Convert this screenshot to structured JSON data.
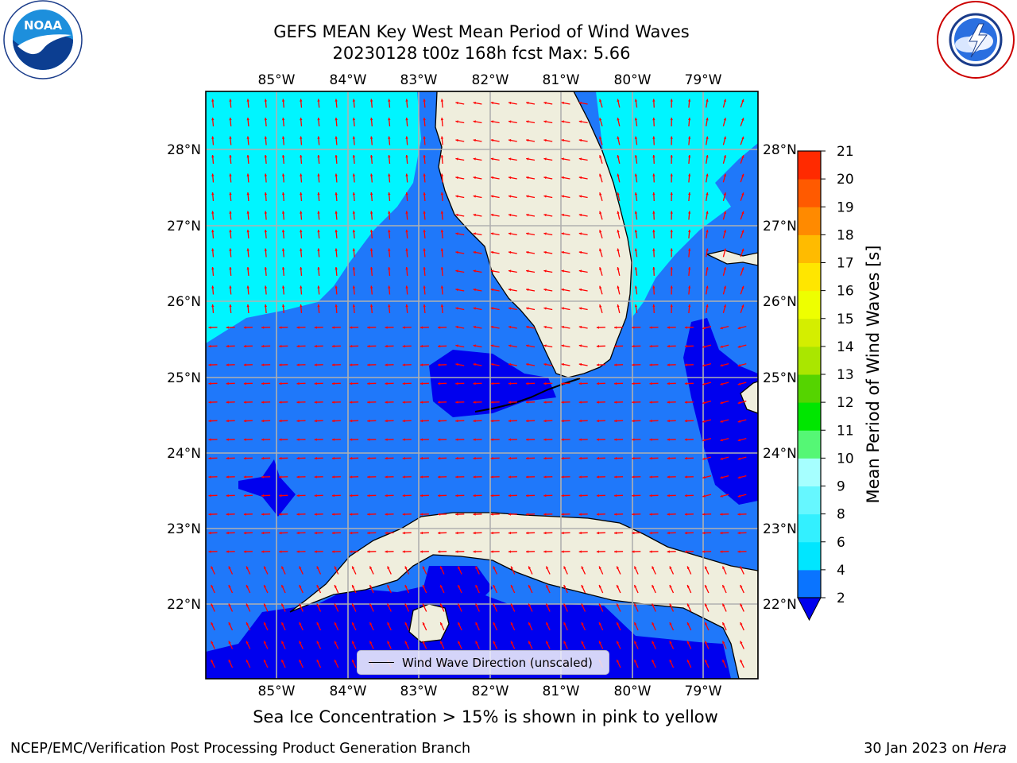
{
  "title_line1": "GEFS MEAN Key West Mean Period of Wind Waves",
  "title_line2": "20230128 t00z 168h fcst   Max: 5.66",
  "lon_labels": [
    "85°W",
    "84°W",
    "83°W",
    "82°W",
    "81°W",
    "80°W",
    "79°W"
  ],
  "lat_labels": [
    "28°N",
    "27°N",
    "26°N",
    "25°N",
    "24°N",
    "23°N",
    "22°N"
  ],
  "colorbar": {
    "label": "Mean Period of Wind Waves [s]",
    "ticks": [
      "2",
      "4",
      "6",
      "8",
      "9",
      "10",
      "11",
      "12",
      "13",
      "14",
      "15",
      "16",
      "17",
      "18",
      "19",
      "20",
      "21"
    ],
    "colors": [
      "#0a74ff",
      "#00e6ff",
      "#33f0ff",
      "#66f7ff",
      "#a6ffff",
      "#55f775",
      "#00e600",
      "#55d400",
      "#aae600",
      "#d4ee00",
      "#eeff00",
      "#ffe600",
      "#ffbb00",
      "#ff8a00",
      "#ff5a00",
      "#ff2a00"
    ],
    "extend_color": "#0000ee"
  },
  "legend_label": "Wind Wave Direction (unscaled)",
  "ice_note": "Sea Ice Concentration > 15% is shown in pink to yellow",
  "footer_left": "NCEP/EMC/Verification Post Processing Product Generation Branch",
  "footer_right_prefix": "30 Jan 2023 on ",
  "footer_right_host": "Hera",
  "colors": {
    "land": "#efeedd",
    "wave_2_4": "#1f78fa",
    "wave_4_6": "#00f5ff",
    "wave_under_2": "#0000ee",
    "arrow": "#ff0000",
    "grid": "#b0b0b0"
  },
  "logos": [
    "noaa-logo",
    "nws-logo"
  ]
}
